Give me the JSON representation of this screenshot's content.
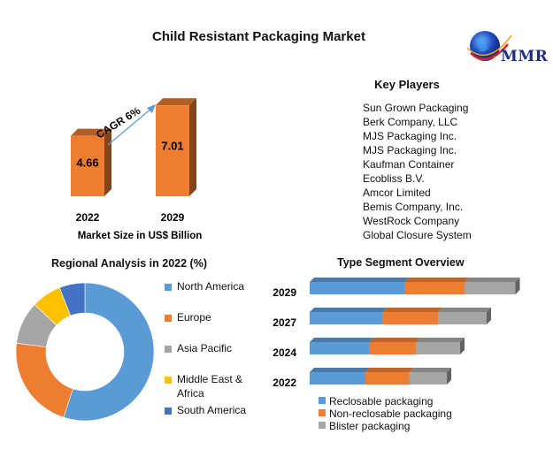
{
  "title": "Child Resistant Packaging Market",
  "logo": {
    "text": "MMR",
    "icon": "globe-icon"
  },
  "key_players": {
    "title": "Key Players",
    "items": [
      "Sun Grown Packaging",
      "Berk Company, LLC",
      "MJS Packaging Inc.",
      "MJS Packaging Inc.",
      "Kaufman Container",
      "Ecobliss B.V.",
      "Amcor Limited",
      "Bemis Company, Inc.",
      "WestRock Company",
      "Global Closure System"
    ]
  },
  "chart_data": [
    {
      "type": "bar",
      "name": "market-size",
      "categories": [
        "2022",
        "2029"
      ],
      "values": [
        4.66,
        7.01
      ],
      "value_labels": [
        "4.66",
        "7.01"
      ],
      "xlabel": "Market Size in US$ Billion",
      "annotation": "CAGR 6%",
      "ylim": [
        0,
        7.5
      ],
      "color": "#ed7d31"
    },
    {
      "type": "pie",
      "title": "Regional Analysis in 2022 (%)",
      "categories": [
        "North America",
        "Europe",
        "Asia Pacific",
        "Middle East & Africa",
        "South America"
      ],
      "values": [
        55,
        22,
        10,
        7,
        6
      ],
      "colors": [
        "#5b9bd5",
        "#ed7d31",
        "#a5a5a5",
        "#ffc000",
        "#4472c4"
      ],
      "legend_lines": [
        [
          "North America"
        ],
        [
          "Europe"
        ],
        [
          "Asia Pacific"
        ],
        [
          "Middle East &",
          "Africa"
        ],
        [
          "South America"
        ]
      ]
    },
    {
      "type": "bar",
      "orientation": "horizontal-stacked",
      "title": "Type Segment Overview",
      "categories": [
        "2029",
        "2027",
        "2024",
        "2022"
      ],
      "series": [
        {
          "name": "Reclosable packaging",
          "values": [
            4.3,
            3.3,
            2.7,
            2.5
          ],
          "color": "#5b9bd5"
        },
        {
          "name": "Non-reclosable packaging",
          "values": [
            2.7,
            2.5,
            2.1,
            2.0
          ],
          "color": "#ed7d31"
        },
        {
          "name": "Blister packaging",
          "values": [
            2.3,
            2.2,
            2.0,
            1.7
          ],
          "color": "#a5a5a5"
        }
      ],
      "xlim": [
        0,
        9.6
      ]
    }
  ]
}
